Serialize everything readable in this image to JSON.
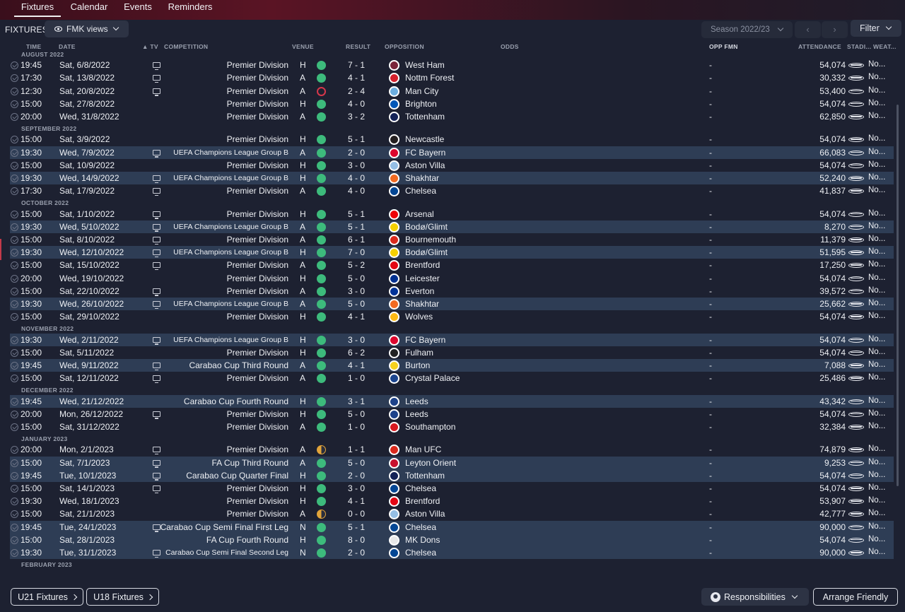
{
  "tabs": [
    "Fixtures",
    "Calendar",
    "Events",
    "Reminders"
  ],
  "toolbar": {
    "title": "FIXTURES",
    "views_label": "FMK views",
    "season_label": "Season 2022/23",
    "filter_label": "Filter"
  },
  "columns": {
    "time": "TIME",
    "date": "DATE",
    "tv": "▲ TV",
    "competition": "COMPETITION",
    "venue": "VENUE",
    "result": "RESULT",
    "opposition": "OPPOSITION",
    "odds": "ODDS",
    "opp_fmn": "OPP FMN",
    "attendance": "ATTENDANCE",
    "stadium": "STADI...",
    "weather": "WEAT..."
  },
  "colors": {
    "win": "#3dbb7c",
    "draw": "#e2a43a",
    "loss": "#d6374b",
    "highlight_row": "#2e3d55",
    "background": "#1d2131"
  },
  "months": [
    {
      "label": "AUGUST 2022",
      "rows": [
        {
          "time": "19:45",
          "date": "Sat, 6/8/2022",
          "tv": true,
          "comp": "Premier Division",
          "venue": "H",
          "outcome": "win",
          "result": "7 - 1",
          "opp": "West Ham",
          "badge_color": "#7a263a",
          "fmn": "-",
          "att": "54,074",
          "weather": "No..."
        },
        {
          "time": "17:30",
          "date": "Sat, 13/8/2022",
          "tv": true,
          "comp": "Premier Division",
          "venue": "A",
          "outcome": "win",
          "result": "4 - 1",
          "opp": "Nottm Forest",
          "badge_color": "#d4202c",
          "fmn": "-",
          "att": "30,332",
          "weather": "No..."
        },
        {
          "time": "12:30",
          "date": "Sat, 20/8/2022",
          "tv": true,
          "comp": "Premier Division",
          "venue": "A",
          "outcome": "loss",
          "result": "2 - 4",
          "opp": "Man City",
          "badge_color": "#6caee0",
          "fmn": "-",
          "att": "53,400",
          "weather": "No..."
        },
        {
          "time": "15:00",
          "date": "Sat, 27/8/2022",
          "tv": false,
          "comp": "Premier Division",
          "venue": "H",
          "outcome": "win",
          "result": "4 - 0",
          "opp": "Brighton",
          "badge_color": "#0057b8",
          "fmn": "-",
          "att": "54,074",
          "weather": "No..."
        },
        {
          "time": "20:00",
          "date": "Wed, 31/8/2022",
          "tv": false,
          "comp": "Premier Division",
          "venue": "A",
          "outcome": "win",
          "result": "3 - 2",
          "opp": "Tottenham",
          "badge_color": "#132257",
          "fmn": "-",
          "att": "62,850",
          "weather": "No..."
        }
      ]
    },
    {
      "label": "SEPTEMBER 2022",
      "rows": [
        {
          "time": "15:00",
          "date": "Sat, 3/9/2022",
          "tv": false,
          "comp": "Premier Division",
          "venue": "H",
          "outcome": "win",
          "result": "5 - 1",
          "opp": "Newcastle",
          "badge_color": "#241f20",
          "fmn": "-",
          "att": "54,074",
          "weather": "No..."
        },
        {
          "time": "19:30",
          "date": "Wed, 7/9/2022",
          "tv": true,
          "comp": "UEFA Champions League Group B",
          "venue": "A",
          "outcome": "win",
          "result": "2 - 0",
          "opp": "FC Bayern",
          "badge_color": "#dc052d",
          "fmn": "-",
          "att": "66,083",
          "weather": "No...",
          "hl": true,
          "small": true
        },
        {
          "time": "15:00",
          "date": "Sat, 10/9/2022",
          "tv": false,
          "comp": "Premier Division",
          "venue": "H",
          "outcome": "win",
          "result": "3 - 0",
          "opp": "Aston Villa",
          "badge_color": "#95bfe5",
          "fmn": "-",
          "att": "54,074",
          "weather": "No..."
        },
        {
          "time": "19:30",
          "date": "Wed, 14/9/2022",
          "tv": true,
          "comp": "UEFA Champions League Group B",
          "venue": "H",
          "outcome": "win",
          "result": "4 - 0",
          "opp": "Shakhtar",
          "badge_color": "#f26a21",
          "fmn": "-",
          "att": "52,240",
          "weather": "No...",
          "hl": true,
          "small": true
        },
        {
          "time": "17:30",
          "date": "Sat, 17/9/2022",
          "tv": true,
          "comp": "Premier Division",
          "venue": "A",
          "outcome": "win",
          "result": "4 - 0",
          "opp": "Chelsea",
          "badge_color": "#034694",
          "fmn": "-",
          "att": "41,837",
          "weather": "No..."
        }
      ]
    },
    {
      "label": "OCTOBER 2022",
      "rows": [
        {
          "time": "15:00",
          "date": "Sat, 1/10/2022",
          "tv": true,
          "comp": "Premier Division",
          "venue": "H",
          "outcome": "win",
          "result": "5 - 1",
          "opp": "Arsenal",
          "badge_color": "#ef0107",
          "fmn": "-",
          "att": "54,074",
          "weather": "No..."
        },
        {
          "time": "19:30",
          "date": "Wed, 5/10/2022",
          "tv": true,
          "comp": "UEFA Champions League Group B",
          "venue": "A",
          "outcome": "win",
          "result": "5 - 1",
          "opp": "Bodø/Glimt",
          "badge_color": "#f5d000",
          "fmn": "-",
          "att": "8,270",
          "weather": "No...",
          "hl": true,
          "small": true
        },
        {
          "time": "15:00",
          "date": "Sat, 8/10/2022",
          "tv": true,
          "comp": "Premier Division",
          "venue": "A",
          "outcome": "win",
          "result": "6 - 1",
          "opp": "Bournemouth",
          "badge_color": "#da291c",
          "fmn": "-",
          "att": "11,379",
          "weather": "No..."
        },
        {
          "time": "19:30",
          "date": "Wed, 12/10/2022",
          "tv": true,
          "comp": "UEFA Champions League Group B",
          "venue": "H",
          "outcome": "win",
          "result": "7 - 0",
          "opp": "Bodø/Glimt",
          "badge_color": "#f5d000",
          "fmn": "-",
          "att": "51,595",
          "weather": "No...",
          "hl": true,
          "small": true
        },
        {
          "time": "15:00",
          "date": "Sat, 15/10/2022",
          "tv": true,
          "comp": "Premier Division",
          "venue": "A",
          "outcome": "win",
          "result": "5 - 2",
          "opp": "Brentford",
          "badge_color": "#e30613",
          "fmn": "-",
          "att": "17,250",
          "weather": "No..."
        },
        {
          "time": "20:00",
          "date": "Wed, 19/10/2022",
          "tv": false,
          "comp": "Premier Division",
          "venue": "H",
          "outcome": "win",
          "result": "5 - 0",
          "opp": "Leicester",
          "badge_color": "#003090",
          "fmn": "-",
          "att": "54,074",
          "weather": "No..."
        },
        {
          "time": "15:00",
          "date": "Sat, 22/10/2022",
          "tv": true,
          "comp": "Premier Division",
          "venue": "A",
          "outcome": "win",
          "result": "3 - 0",
          "opp": "Everton",
          "badge_color": "#003399",
          "fmn": "-",
          "att": "39,572",
          "weather": "No..."
        },
        {
          "time": "19:30",
          "date": "Wed, 26/10/2022",
          "tv": true,
          "comp": "UEFA Champions League Group B",
          "venue": "A",
          "outcome": "win",
          "result": "5 - 0",
          "opp": "Shakhtar",
          "badge_color": "#f26a21",
          "fmn": "-",
          "att": "25,662",
          "weather": "No...",
          "hl": true,
          "small": true
        },
        {
          "time": "15:00",
          "date": "Sat, 29/10/2022",
          "tv": false,
          "comp": "Premier Division",
          "venue": "H",
          "outcome": "win",
          "result": "4 - 1",
          "opp": "Wolves",
          "badge_color": "#fdb913",
          "fmn": "-",
          "att": "54,074",
          "weather": "No..."
        }
      ]
    },
    {
      "label": "NOVEMBER 2022",
      "rows": [
        {
          "time": "19:30",
          "date": "Wed, 2/11/2022",
          "tv": true,
          "comp": "UEFA Champions League Group B",
          "venue": "H",
          "outcome": "win",
          "result": "3 - 0",
          "opp": "FC Bayern",
          "badge_color": "#dc052d",
          "fmn": "-",
          "att": "54,074",
          "weather": "No...",
          "hl": true,
          "small": true
        },
        {
          "time": "15:00",
          "date": "Sat, 5/11/2022",
          "tv": false,
          "comp": "Premier Division",
          "venue": "H",
          "outcome": "win",
          "result": "6 - 2",
          "opp": "Fulham",
          "badge_color": "#222222",
          "fmn": "-",
          "att": "54,074",
          "weather": "No..."
        },
        {
          "time": "19:45",
          "date": "Wed, 9/11/2022",
          "tv": true,
          "comp": "Carabao Cup Third Round",
          "venue": "A",
          "outcome": "win",
          "result": "4 - 1",
          "opp": "Burton",
          "badge_color": "#f7d21d",
          "fmn": "-",
          "att": "7,088",
          "weather": "No...",
          "hl": true
        },
        {
          "time": "15:00",
          "date": "Sat, 12/11/2022",
          "tv": true,
          "comp": "Premier Division",
          "venue": "A",
          "outcome": "win",
          "result": "1 - 0",
          "opp": "Crystal Palace",
          "badge_color": "#1b458f",
          "fmn": "-",
          "att": "25,486",
          "weather": "No..."
        }
      ]
    },
    {
      "label": "DECEMBER 2022",
      "rows": [
        {
          "time": "19:45",
          "date": "Wed, 21/12/2022",
          "tv": false,
          "comp": "Carabao Cup Fourth Round",
          "venue": "H",
          "outcome": "win",
          "result": "3 - 1",
          "opp": "Leeds",
          "badge_color": "#1d428a",
          "fmn": "-",
          "att": "43,342",
          "weather": "No...",
          "hl": true
        },
        {
          "time": "20:00",
          "date": "Mon, 26/12/2022",
          "tv": true,
          "comp": "Premier Division",
          "venue": "H",
          "outcome": "win",
          "result": "5 - 0",
          "opp": "Leeds",
          "badge_color": "#1d428a",
          "fmn": "-",
          "att": "54,074",
          "weather": "No..."
        },
        {
          "time": "15:00",
          "date": "Sat, 31/12/2022",
          "tv": false,
          "comp": "Premier Division",
          "venue": "A",
          "outcome": "win",
          "result": "1 - 0",
          "opp": "Southampton",
          "badge_color": "#d71920",
          "fmn": "-",
          "att": "32,384",
          "weather": "No..."
        }
      ]
    },
    {
      "label": "JANUARY 2023",
      "rows": [
        {
          "time": "20:00",
          "date": "Mon, 2/1/2023",
          "tv": true,
          "comp": "Premier Division",
          "venue": "A",
          "outcome": "draw",
          "result": "1 - 1",
          "opp": "Man UFC",
          "badge_color": "#da291c",
          "fmn": "-",
          "att": "74,879",
          "weather": "No..."
        },
        {
          "time": "15:00",
          "date": "Sat, 7/1/2023",
          "tv": true,
          "comp": "FA Cup Third Round",
          "venue": "A",
          "outcome": "win",
          "result": "5 - 0",
          "opp": "Leyton Orient",
          "badge_color": "#c8102e",
          "fmn": "-",
          "att": "9,253",
          "weather": "No...",
          "hl": true
        },
        {
          "time": "19:45",
          "date": "Tue, 10/1/2023",
          "tv": true,
          "comp": "Carabao Cup Quarter Final",
          "venue": "H",
          "outcome": "win",
          "result": "2 - 0",
          "opp": "Tottenham",
          "badge_color": "#132257",
          "fmn": "-",
          "att": "54,074",
          "weather": "No...",
          "hl": true
        },
        {
          "time": "15:00",
          "date": "Sat, 14/1/2023",
          "tv": true,
          "comp": "Premier Division",
          "venue": "H",
          "outcome": "win",
          "result": "3 - 0",
          "opp": "Chelsea",
          "badge_color": "#034694",
          "fmn": "-",
          "att": "54,074",
          "weather": "No..."
        },
        {
          "time": "19:30",
          "date": "Wed, 18/1/2023",
          "tv": false,
          "comp": "Premier Division",
          "venue": "H",
          "outcome": "win",
          "result": "4 - 1",
          "opp": "Brentford",
          "badge_color": "#e30613",
          "fmn": "-",
          "att": "53,907",
          "weather": "No..."
        },
        {
          "time": "15:00",
          "date": "Sat, 21/1/2023",
          "tv": false,
          "comp": "Premier Division",
          "venue": "A",
          "outcome": "draw",
          "result": "0 - 0",
          "opp": "Aston Villa",
          "badge_color": "#95bfe5",
          "fmn": "-",
          "att": "42,777",
          "weather": "No..."
        },
        {
          "time": "19:45",
          "date": "Tue, 24/1/2023",
          "tv": true,
          "comp": "Carabao Cup Semi Final First Leg",
          "venue": "N",
          "outcome": "win",
          "result": "5 - 1",
          "opp": "Chelsea",
          "badge_color": "#034694",
          "fmn": "-",
          "att": "90,000",
          "weather": "No...",
          "hl": true
        },
        {
          "time": "15:00",
          "date": "Sat, 28/1/2023",
          "tv": false,
          "comp": "FA Cup Fourth Round",
          "venue": "H",
          "outcome": "win",
          "result": "8 - 0",
          "opp": "MK Dons",
          "badge_color": "#e8e8e8",
          "fmn": "-",
          "att": "54,074",
          "weather": "No...",
          "hl": true
        },
        {
          "time": "19:30",
          "date": "Tue, 31/1/2023",
          "tv": true,
          "comp": "Carabao Cup Semi Final Second Leg",
          "venue": "N",
          "outcome": "win",
          "result": "2 - 0",
          "opp": "Chelsea",
          "badge_color": "#034694",
          "fmn": "-",
          "att": "90,000",
          "weather": "No...",
          "hl": true,
          "small": true
        }
      ]
    },
    {
      "label": "FEBRUARY 2023",
      "rows": []
    }
  ],
  "footer": {
    "u21_label": "U21 Fixtures",
    "u18_label": "U18 Fixtures",
    "responsibilities_label": "Responsibilities",
    "arrange_label": "Arrange Friendly"
  }
}
